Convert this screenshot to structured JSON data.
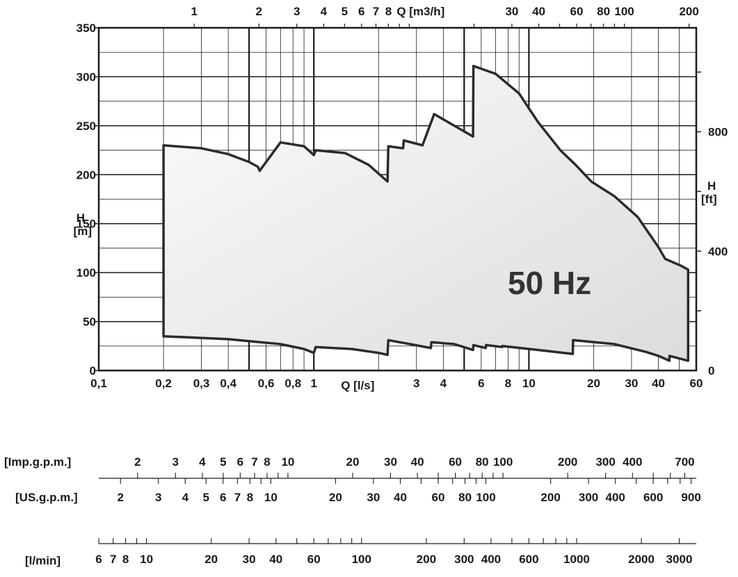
{
  "chart_data": {
    "type": "area",
    "annotation": "50 Hz",
    "x_bottom": {
      "label": "Q [l/s]",
      "scale": "log",
      "range": [
        0.1,
        60
      ],
      "ticks": [
        "0,1",
        "0,2",
        "0,3",
        "0,4",
        "0,6",
        "0,8",
        "1",
        "3",
        "4",
        "6",
        "8",
        "10",
        "20",
        "30",
        "40",
        "60"
      ]
    },
    "x_top": {
      "label": "Q [m3/h]",
      "scale": "log",
      "ticks": [
        "1",
        "2",
        "3",
        "4",
        "5",
        "6",
        "7",
        "8",
        "30",
        "40",
        "60",
        "80",
        "100",
        "200"
      ]
    },
    "y_left": {
      "label_line1": "H",
      "label_line2": "[m]",
      "range": [
        0,
        350
      ],
      "ticks": [
        "0",
        "50",
        "100",
        "150",
        "200",
        "250",
        "300",
        "350"
      ]
    },
    "y_right": {
      "label_line1": "H",
      "label_line2": "[ft]",
      "ticks": [
        "0",
        "400",
        "800"
      ]
    },
    "upper_boundary": {
      "q_l_s": [
        0.2,
        0.3,
        0.4,
        0.5,
        0.55,
        0.56,
        0.7,
        0.9,
        1.0,
        1.02,
        1.4,
        1.8,
        2.2,
        2.22,
        2.6,
        2.62,
        3.2,
        3.6,
        3.62,
        4.5,
        5.5,
        5.52,
        7.0,
        9.0,
        11.0,
        14.0,
        16.5,
        19.5,
        25.0,
        32.0,
        40.0,
        43.0,
        51.0,
        55.0
      ],
      "h_m": [
        230,
        227,
        221,
        213,
        208,
        204,
        233,
        229,
        220,
        225,
        222,
        210,
        193,
        229,
        227,
        235,
        230,
        260,
        262,
        250,
        239,
        311,
        303,
        283,
        254,
        225,
        210,
        193,
        178,
        157,
        126,
        114,
        107,
        103
      ]
    },
    "lower_boundary": {
      "q_l_s": [
        0.2,
        0.4,
        0.7,
        0.9,
        1.0,
        1.02,
        1.5,
        2.0,
        2.2,
        2.22,
        2.8,
        3.5,
        3.52,
        4.5,
        5.5,
        5.52,
        6.3,
        6.32,
        7.5,
        7.52,
        11.0,
        16.0,
        16.05,
        25.0,
        35.0,
        40.0,
        45.0,
        45.05,
        55.0
      ],
      "h_m": [
        35,
        32,
        27,
        22,
        18,
        24,
        22,
        18,
        16,
        31,
        27,
        23,
        29,
        27,
        21,
        26,
        23,
        26,
        24,
        25,
        21,
        17,
        31,
        27,
        19,
        15,
        10,
        15,
        10
      ]
    }
  },
  "flow_scales": [
    {
      "label": "[Imp.g.p.m.]",
      "ticks": [
        "2",
        "3",
        "4",
        "5",
        "6",
        "7",
        "8",
        "10",
        "20",
        "30",
        "40",
        "60",
        "80",
        "100",
        "200",
        "300",
        "400",
        "700"
      ]
    },
    {
      "label": "[US.g.p.m.]",
      "ticks": [
        "2",
        "3",
        "4",
        "5",
        "6",
        "7",
        "8",
        "10",
        "20",
        "30",
        "40",
        "60",
        "80",
        "100",
        "200",
        "300",
        "400",
        "600",
        "900"
      ]
    },
    {
      "label": "[l/min]",
      "ticks": [
        "6",
        "7",
        "8",
        "10",
        "20",
        "30",
        "40",
        "60",
        "100",
        "200",
        "300",
        "400",
        "600",
        "1000",
        "2000",
        "3000"
      ]
    }
  ]
}
